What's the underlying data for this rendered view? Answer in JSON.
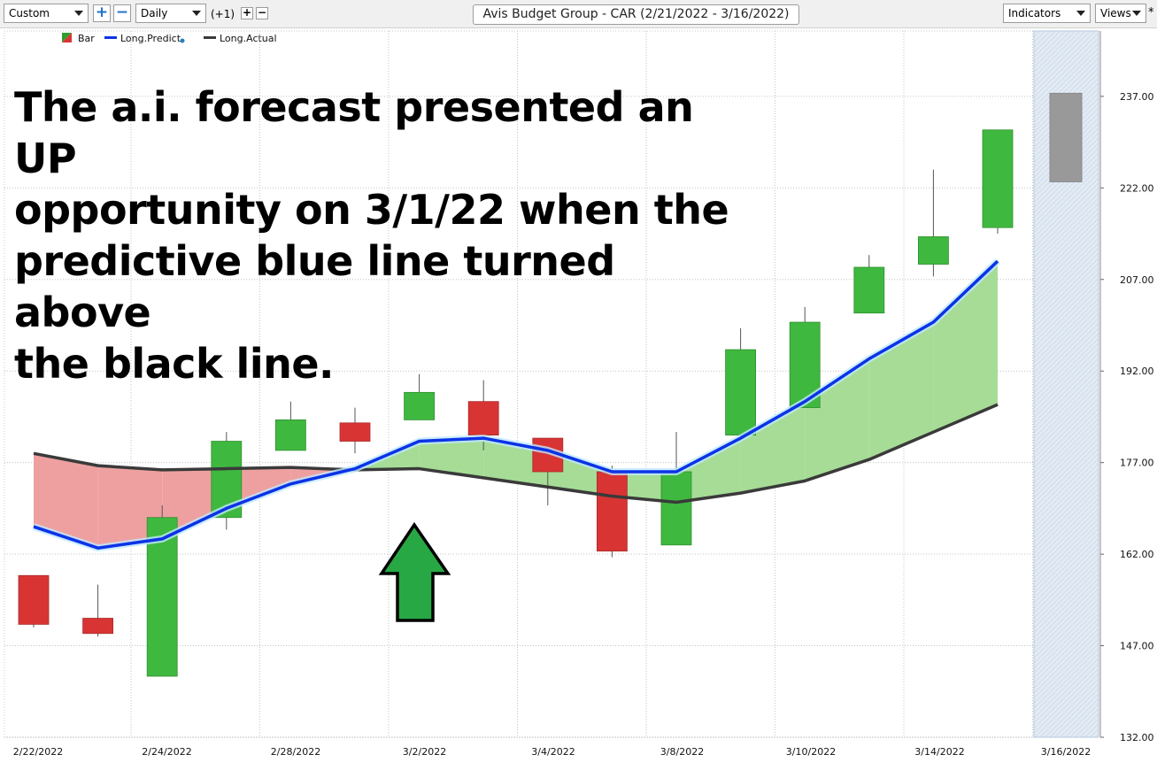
{
  "toolbar": {
    "layout_select": "Custom",
    "interval_select": "Daily",
    "offset_label": "(+1)",
    "add_icon": "plus-icon",
    "remove_icon": "minus-icon",
    "title": "Avis Budget Group - CAR (2/21/2022 - 3/16/2022)",
    "indicators_label": "Indicators",
    "views_label": "Views",
    "star": "*"
  },
  "legend": [
    {
      "label": "Bar",
      "color": "#2e9e2e"
    },
    {
      "label": "Long.Predict",
      "color": "#0b33e6"
    },
    {
      "label": "Long.Actual",
      "color": "#3a3a3a"
    }
  ],
  "overlay_text": "The a.i. forecast presented an UP\nopportunity on 3/1/22 when the\npredictive blue line turned above\nthe black line.",
  "colors": {
    "up": "#3fb83f",
    "down": "#d93434",
    "predict": "#0b33e6",
    "actual": "#3a3a3a",
    "fill_above": "#a6dc96",
    "fill_below": "#eea0a0",
    "forecast": "#999999",
    "arrow": "#27a845"
  },
  "chart_data": {
    "type": "candlestick",
    "title": "Avis Budget Group - CAR (2/21/2022 - 3/16/2022)",
    "ylim": [
      132,
      248
    ],
    "y_ticks": [
      132,
      147,
      162,
      177,
      192,
      207,
      222,
      237
    ],
    "y_tick_labels": [
      "132.00",
      "147.00",
      "162.00",
      "177.00",
      "192.00",
      "207.00",
      "222.00",
      "237.00"
    ],
    "x_tick_labels": [
      "2/22/2022",
      "2/24/2022",
      "2/28/2022",
      "3/2/2022",
      "3/4/2022",
      "3/8/2022",
      "3/10/2022",
      "3/14/2022",
      "3/16/2022"
    ],
    "candles": [
      {
        "open": 158.5,
        "high": 158.5,
        "low": 150.0,
        "close": 150.5
      },
      {
        "open": 151.5,
        "high": 157.0,
        "low": 148.5,
        "close": 149.0
      },
      {
        "open": 142.0,
        "high": 170.0,
        "low": 142.0,
        "close": 168.0
      },
      {
        "open": 168.0,
        "high": 182.0,
        "low": 166.0,
        "close": 180.5
      },
      {
        "open": 179.0,
        "high": 187.0,
        "low": 179.0,
        "close": 184.0
      },
      {
        "open": 183.5,
        "high": 186.0,
        "low": 178.5,
        "close": 180.5
      },
      {
        "open": 184.0,
        "high": 191.5,
        "low": 184.0,
        "close": 188.5
      },
      {
        "open": 187.0,
        "high": 190.5,
        "low": 179.0,
        "close": 181.5
      },
      {
        "open": 181.0,
        "high": 181.0,
        "low": 170.0,
        "close": 175.5
      },
      {
        "open": 175.5,
        "high": 176.5,
        "low": 161.5,
        "close": 162.5
      },
      {
        "open": 163.5,
        "high": 182.0,
        "low": 163.5,
        "close": 175.5
      },
      {
        "open": 181.5,
        "high": 199.0,
        "low": 180.5,
        "close": 195.5
      },
      {
        "open": 186.0,
        "high": 202.5,
        "low": 186.0,
        "close": 200.0
      },
      {
        "open": 201.5,
        "high": 211.0,
        "low": 201.5,
        "close": 209.0
      },
      {
        "open": 209.5,
        "high": 225.0,
        "low": 207.5,
        "close": 214.0
      },
      {
        "open": 215.5,
        "high": 231.5,
        "low": 214.5,
        "close": 231.5
      }
    ],
    "forecast_bar": {
      "low": 223.0,
      "high": 237.5
    },
    "series": [
      {
        "name": "Long.Predict",
        "values": [
          166.5,
          163.0,
          164.5,
          169.5,
          173.5,
          176.0,
          180.5,
          181.0,
          179.0,
          175.5,
          175.5,
          181.0,
          187.0,
          194.0,
          200.0,
          210.0
        ]
      },
      {
        "name": "Long.Actual",
        "values": [
          178.5,
          176.5,
          175.8,
          176.0,
          176.2,
          175.8,
          176.0,
          174.5,
          173.0,
          171.5,
          170.5,
          172.0,
          174.0,
          177.5,
          182.0,
          186.5
        ]
      }
    ]
  }
}
